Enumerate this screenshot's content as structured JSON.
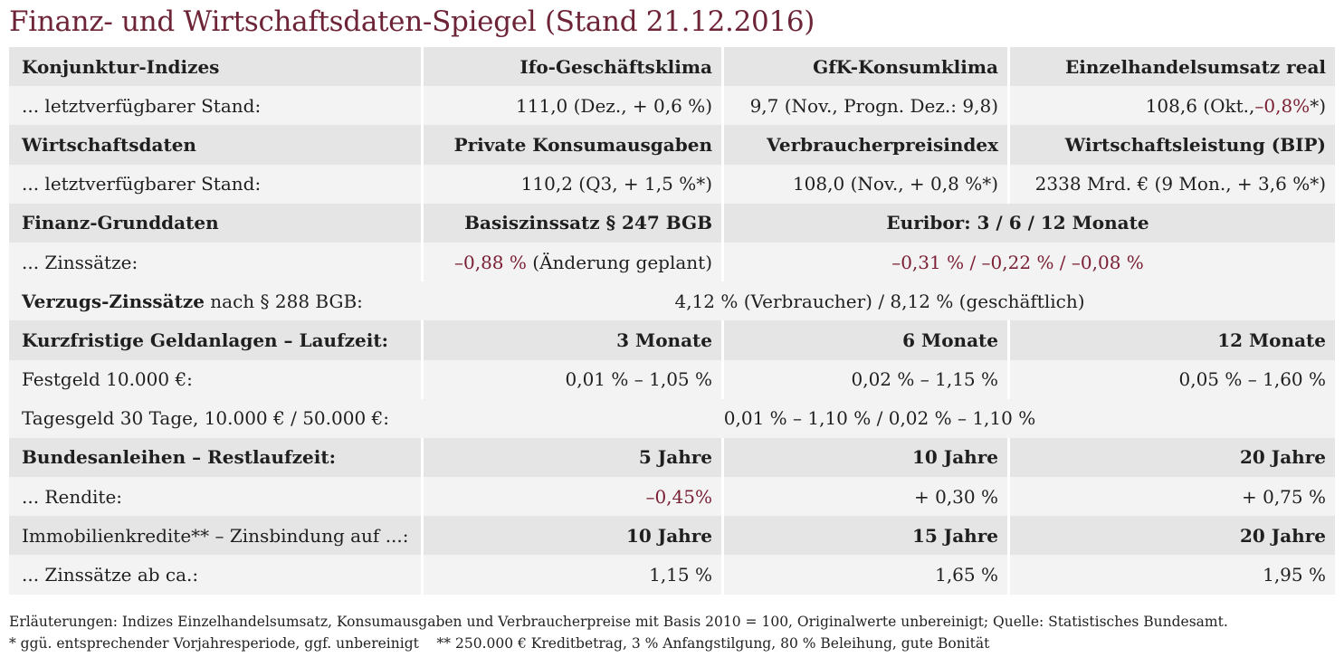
{
  "title": "Finanz- und Wirtschaftsdaten-Spiegel (Stand 21.12.2016)",
  "rows": {
    "konj_head": {
      "label": "Konjunktur-Indizes",
      "c1": "Ifo-Geschäftsklima",
      "c2": "GfK-Konsumklima",
      "c3": "Einzelhandelsumsatz real"
    },
    "konj_vals": {
      "label": "... letztverfügbarer Stand:",
      "c1": "111,0 (Dez., + 0,6 %)",
      "c2": "9,7 (Nov., Progn. Dez.: 9,8)",
      "c3_pre": "108,6 (Okt., ",
      "c3_red": "–0,8%",
      "c3_post": "*)"
    },
    "wirt_head": {
      "label": "Wirtschaftsdaten",
      "c1": "Private Konsumausgaben",
      "c2": "Verbraucherpreisindex",
      "c3": "Wirtschaftsleistung (BIP)"
    },
    "wirt_vals": {
      "label": "... letztverfügbarer Stand:",
      "c1": "110,2 (Q3, + 1,5 %*)",
      "c2": "108,0 (Nov., + 0,8 %*)",
      "c3": "2338 Mrd. € (9 Mon., + 3,6 %*)"
    },
    "fin_head": {
      "label": "Finanz-Grunddaten",
      "c1": "Basiszinssatz § 247 BGB",
      "c23": "Euribor: 3 / 6 / 12 Monate"
    },
    "fin_vals": {
      "label": "... Zinssätze:",
      "c1_red": "–0,88 %",
      "c1_post": " (Änderung geplant)",
      "c23": "–0,31 % / –0,22 % / –0,08 %"
    },
    "verzug": {
      "label_bold": "Verzugs-Zinssätze",
      "label_rest": " nach § 288 BGB:",
      "value": "4,12 % (Verbraucher) / 8,12 % (geschäftlich)"
    },
    "kurz_head": {
      "label": "Kurzfristige Geldanlagen – Laufzeit:",
      "c1": "3 Monate",
      "c2": "6 Monate",
      "c3": "12 Monate"
    },
    "festgeld": {
      "label": "Festgeld 10.000 €:",
      "c1": "0,01 % – 1,05 %",
      "c2": "0,02 % – 1,15 %",
      "c3": "0,05 % – 1,60 %"
    },
    "tagesgeld": {
      "label": "Tagesgeld 30 Tage, 10.000 € / 50.000 €:",
      "value": "0,01 % – 1,10 % / 0,02 % – 1,10 %"
    },
    "bund_head": {
      "label": "Bundesanleihen – Restlaufzeit:",
      "c1": "5 Jahre",
      "c2": "10 Jahre",
      "c3": "20 Jahre"
    },
    "rendite": {
      "label": "... Rendite:",
      "c1": "–0,45%",
      "c2": "+ 0,30 %",
      "c3": "+ 0,75 %"
    },
    "immo_head": {
      "label": "Immobilienkredite** – Zinsbindung auf ...:",
      "c1": "10 Jahre",
      "c2": "15 Jahre",
      "c3": "20 Jahre"
    },
    "immo_vals": {
      "label": "... Zinssätze ab ca.:",
      "c1": "1,15 %",
      "c2": "1,65 %",
      "c3": "1,95 %"
    }
  },
  "footnotes": {
    "line1": "Erläuterungen: Indizes Einzelhandelsumsatz, Konsumausgaben und Verbraucherpreise mit Basis 2010 = 100, Originalwerte unbereinigt; Quelle: Statistisches Bundesamt.",
    "line2": "* ggü. entsprechender Vorjahresperiode, ggf. unbereinigt    ** 250.000 € Kreditbetrag, 3 % Anfangstilgung, 80 % Beleihung, gute Bonität"
  },
  "colors": {
    "title": "#6d2437",
    "negative": "#7a1f33",
    "row_dark": "#e5e5e5",
    "row_light": "#f3f3f3"
  }
}
